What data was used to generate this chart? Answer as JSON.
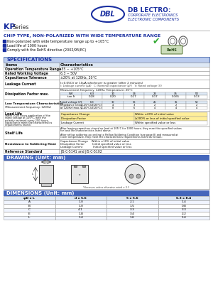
{
  "bg_color": "#ffffff",
  "blue": "#1a2fa0",
  "light_blue_header": "#c8d8f0",
  "section_bar_color": "#4466bb",
  "table_line_color": "#999999",
  "rohs_green": "#44aa22",
  "rohs_box_color": "#aaccaa",
  "chip_type_text": "CHIP TYPE, NON-POLARIZED WITH WIDE TEMPERATURE RANGE",
  "bullets": [
    "Non-polarized with wide temperature range up to +105°C",
    "Load life of 1000 hours",
    "Comply with the RoHS directive (2002/95/EC)"
  ],
  "spec_label": "SPECIFICATIONS",
  "drawing_label": "DRAWING (Unit: mm)",
  "dimensions_label": "DIMENSIONS (Unit: mm)",
  "df_wv": [
    "WV",
    "6.3",
    "10",
    "16",
    "25",
    "35",
    "50"
  ],
  "df_tan": [
    "tan δ",
    "0.28",
    "0.20",
    "0.17",
    "0.17",
    "0.165",
    "0.13"
  ],
  "lt_hdr": [
    "Rated voltage (V)",
    "6.3",
    "10",
    "16",
    "25",
    "35",
    "50"
  ],
  "lt_r1": [
    "Impedance ratio",
    "Z(-25°C)/Z(20°C)",
    "4",
    "3",
    "2",
    "2",
    "2"
  ],
  "lt_r2": [
    "at 120Hz (max.)",
    "Z(-40°C)/Z(20°C)",
    "8",
    "6",
    "4",
    "4",
    "4"
  ],
  "ll_rows": [
    [
      "Capacitance Change",
      "Within ±20% of initial value",
      "#ffee99"
    ],
    [
      "Dissipation Factor",
      "≥200% or less of initial specified value",
      "#ffee99"
    ],
    [
      "Leakage Current",
      "Within specified value or less",
      "#ffffff"
    ]
  ],
  "rs_lines": [
    "Capacitance Change    Within ±10% of initial value",
    "Dissipation Factor         Initial specified value or less",
    "Leakage Current            Initial specified value or less"
  ],
  "dim_hdr": [
    "φD x L",
    "d x 5.6",
    "5 x 5.6",
    "6.3 x 8.4"
  ],
  "dim_rows": [
    [
      "A",
      "1.0",
      "2.1",
      "1.4"
    ],
    [
      "B",
      "1.0",
      "1.5",
      "0.8"
    ],
    [
      "C",
      "4.1",
      "3.3",
      "3.3"
    ],
    [
      "E",
      "1.8",
      "3.4",
      "2.2"
    ],
    [
      "L",
      "1.4",
      "1.6",
      "1.4"
    ]
  ]
}
